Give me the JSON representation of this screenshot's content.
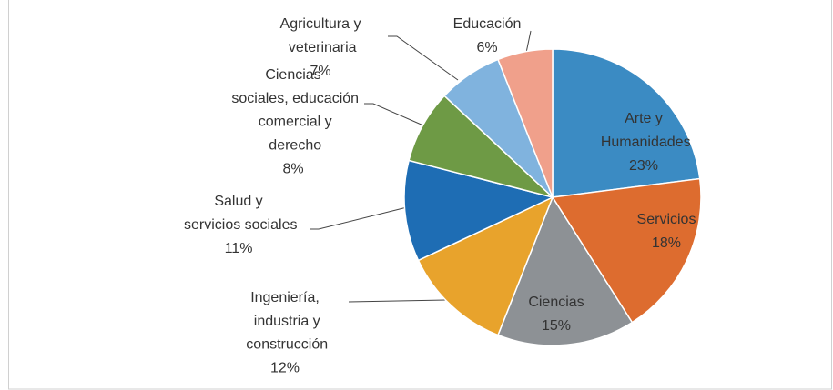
{
  "chart_data": {
    "type": "pie",
    "categories": [
      "Arte y Humanidades",
      "Servicios",
      "Ciencias",
      "Ingeniería, industria y construcción",
      "Salud y servicios sociales",
      "Ciencias sociales, educación comercial y derecho",
      "Agricultura y veterinaria",
      "Educación"
    ],
    "values": [
      23,
      18,
      15,
      12,
      11,
      8,
      7,
      6
    ],
    "value_labels": [
      "23%",
      "18%",
      "15%",
      "12%",
      "11%",
      "8%",
      "7%",
      "6%"
    ],
    "colors": [
      "#3b8bc3",
      "#dd6c2f",
      "#8d9195",
      "#e8a32c",
      "#1e6db4",
      "#6e9a45",
      "#80b3de",
      "#f0a08b"
    ]
  }
}
